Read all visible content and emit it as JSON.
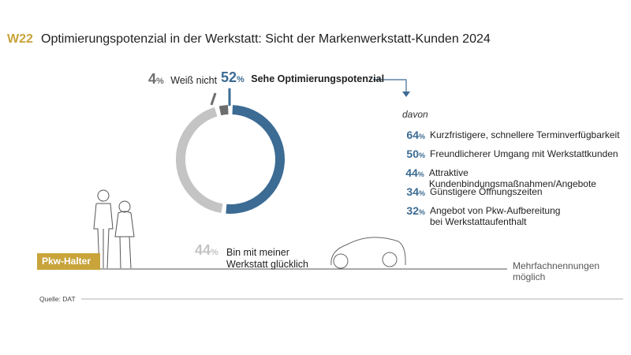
{
  "header": {
    "code": "W22",
    "title": "Optimierungspotenzial in der Werkstatt: Sicht der Markenwerkstatt-Kunden 2024"
  },
  "chart_data": {
    "type": "pie",
    "slices": [
      {
        "value": 52,
        "pct_label": "52",
        "label": "Sehe Optimierungspotenzial",
        "color": "#3c6b93"
      },
      {
        "value": 44,
        "pct_label": "44",
        "label": "Bin mit meiner Werkstatt glücklich",
        "color": "#c4c4c4"
      },
      {
        "value": 4,
        "pct_label": "4",
        "label": "Weiß nicht",
        "color": "#6d6d6d"
      }
    ],
    "label_line2": "Werkstatt glücklich",
    "label_line1": "Bin mit meiner",
    "percent_sign": "%",
    "davon_label": "davon",
    "breakdown": [
      {
        "value": 64,
        "pct_label": "64",
        "label": "Kurzfristigere, schnellere Terminverfügbarkeit"
      },
      {
        "value": 50,
        "pct_label": "50",
        "label": "Freundlicherer Umgang mit Werkstattkunden"
      },
      {
        "value": 44,
        "pct_label": "44",
        "label": "Attraktive Kundenbindungsmaßnahmen/Angebote"
      },
      {
        "value": 34,
        "pct_label": "34",
        "label": "Günstigere Öffnungszeiten"
      },
      {
        "value": 32,
        "pct_label": "32",
        "label": "Angebot von Pkw-Aufbereitung",
        "label2": "bei Werkstattaufenthalt"
      }
    ]
  },
  "footer": {
    "badge": "Pkw-Halter",
    "note": "Mehrfachnennungen möglich",
    "source": "Quelle: DAT"
  },
  "colors": {
    "accent": "#c8a43a",
    "blue": "#3c6b93",
    "light_gray": "#c4c4c4",
    "dark_gray": "#6d6d6d"
  }
}
